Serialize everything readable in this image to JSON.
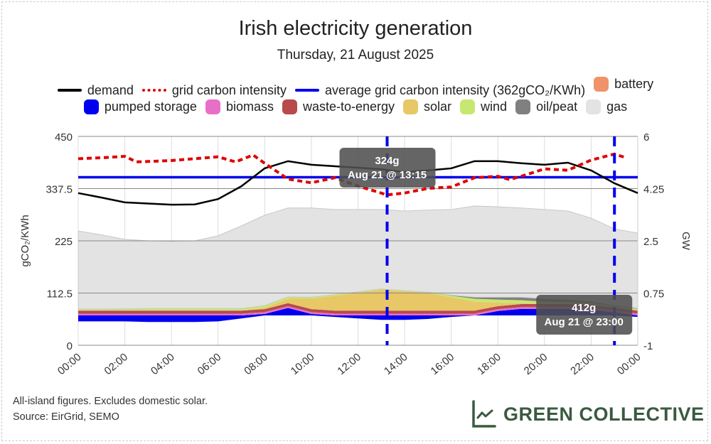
{
  "chart_data": {
    "type": "area",
    "title": "Irish electricity generation",
    "subtitle": "Thursday, 21 August 2025",
    "ylabel_left": "gCO₂/KWh",
    "ylabel_right": "GW",
    "ylim_left": [
      0,
      450
    ],
    "ylim_right": [
      -1,
      6
    ],
    "yticks_left": [
      "0",
      "112.5",
      "225",
      "337.5",
      "450"
    ],
    "yticks_right": [
      "-1",
      "0.75",
      "2.5",
      "4.25",
      "6"
    ],
    "xticks": [
      "00:00",
      "02:00",
      "04:00",
      "06:00",
      "08:00",
      "10:00",
      "12:00",
      "14:00",
      "16:00",
      "18:00",
      "20:00",
      "22:00",
      "00:00"
    ],
    "grid": true,
    "legend": {
      "placement": "top",
      "items": [
        {
          "label": "demand",
          "type": "line",
          "color": "#000000"
        },
        {
          "label": "grid carbon intensity",
          "type": "dash",
          "color": "#e00000"
        },
        {
          "label": "average grid carbon intensity (362gCO₂/KWh)",
          "type": "line",
          "color": "#0000ee"
        },
        {
          "label": "battery",
          "type": "box",
          "color": "#f0936a"
        },
        {
          "label": "pumped storage",
          "type": "box",
          "color": "#0000ee"
        },
        {
          "label": "biomass",
          "type": "box",
          "color": "#e86fc8"
        },
        {
          "label": "waste-to-energy",
          "type": "box",
          "color": "#b84a4a"
        },
        {
          "label": "solar",
          "type": "box",
          "color": "#e8c766"
        },
        {
          "label": "wind",
          "type": "box",
          "color": "#c6e870"
        },
        {
          "label": "oil/peat",
          "type": "box",
          "color": "#808080"
        },
        {
          "label": "gas",
          "type": "box",
          "color": "#e3e3e3"
        }
      ]
    },
    "hours": [
      0,
      1,
      2,
      3,
      4,
      5,
      6,
      7,
      8,
      9,
      10,
      11,
      12,
      13,
      14,
      15,
      16,
      17,
      18,
      19,
      20,
      21,
      22,
      23,
      24
    ],
    "stack_gw": [
      {
        "name": "pumped storage",
        "color": "#0000ee",
        "values": [
          -0.2,
          -0.2,
          -0.2,
          -0.22,
          -0.22,
          -0.22,
          -0.2,
          -0.1,
          0.05,
          0.25,
          0.05,
          -0.05,
          -0.1,
          -0.15,
          -0.15,
          -0.12,
          -0.05,
          0,
          0.15,
          0.22,
          0.22,
          0.22,
          0.2,
          0.1,
          -0.05
        ]
      },
      {
        "name": "biomass",
        "color": "#e86fc8",
        "values": [
          0.06,
          0.06,
          0.06,
          0.06,
          0.06,
          0.06,
          0.06,
          0.06,
          0.06,
          0.06,
          0.06,
          0.06,
          0.06,
          0.06,
          0.06,
          0.06,
          0.06,
          0.06,
          0.06,
          0.06,
          0.06,
          0.06,
          0.06,
          0.06,
          0.06
        ]
      },
      {
        "name": "waste-to-energy",
        "color": "#b84a4a",
        "values": [
          0.1,
          0.1,
          0.1,
          0.1,
          0.1,
          0.1,
          0.1,
          0.1,
          0.1,
          0.1,
          0.1,
          0.1,
          0.1,
          0.1,
          0.1,
          0.1,
          0.1,
          0.1,
          0.1,
          0.1,
          0.1,
          0.1,
          0.1,
          0.1,
          0.1
        ]
      },
      {
        "name": "solar",
        "color": "#e8c766",
        "values": [
          0,
          0,
          0,
          0,
          0,
          0,
          0,
          0,
          0.05,
          0.15,
          0.35,
          0.5,
          0.6,
          0.7,
          0.65,
          0.6,
          0.45,
          0.3,
          0.12,
          0.03,
          0,
          0,
          0,
          0,
          0
        ]
      },
      {
        "name": "wind",
        "color": "#c6e870",
        "values": [
          0.05,
          0.05,
          0.06,
          0.07,
          0.07,
          0.07,
          0.07,
          0.07,
          0.07,
          0.06,
          0.05,
          0.04,
          0.03,
          0.03,
          0.02,
          0.02,
          0.05,
          0.1,
          0.1,
          0.1,
          0.08,
          0.07,
          0.06,
          0.05,
          0.06
        ]
      },
      {
        "name": "oil/peat",
        "color": "#808080",
        "values": [
          0,
          0,
          0,
          0,
          0,
          0,
          0,
          0,
          0,
          0,
          0,
          0,
          0,
          0,
          0,
          0,
          0.02,
          0.05,
          0.08,
          0.1,
          0.1,
          0.08,
          0.05,
          0.03,
          0.02
        ]
      },
      {
        "name": "gas",
        "color": "#e3e3e3",
        "values": [
          2.62,
          2.49,
          2.33,
          2.27,
          2.25,
          2.27,
          2.44,
          2.77,
          3.03,
          2.98,
          2.99,
          2.85,
          2.76,
          2.66,
          2.67,
          2.75,
          2.87,
          3.06,
          3.03,
          2.99,
          2.99,
          2.97,
          2.79,
          2.56,
          2.52
        ]
      },
      {
        "name": "battery",
        "color": "#f0936a",
        "values": [
          0,
          0,
          0,
          0,
          0,
          0,
          0,
          0,
          0,
          0,
          0,
          0,
          0,
          0,
          0,
          0,
          0,
          0,
          0,
          0,
          0,
          0,
          0,
          0,
          0
        ]
      }
    ],
    "demand_gw": [
      4.1,
      3.95,
      3.79,
      3.75,
      3.71,
      3.72,
      3.9,
      4.33,
      4.93,
      5.17,
      5.05,
      5.0,
      4.95,
      4.9,
      4.8,
      4.86,
      4.93,
      5.17,
      5.17,
      5.1,
      5.05,
      5.12,
      4.86,
      4.43,
      4.1
    ],
    "carbon_intensity": {
      "hours": [
        0,
        1,
        2,
        2.5,
        4,
        6,
        6.75,
        7.5,
        8,
        9,
        10,
        11,
        12,
        13.25,
        14,
        15,
        16,
        17,
        18,
        18.5,
        19,
        20,
        21,
        22,
        23,
        23.5
      ],
      "values": [
        402,
        404,
        407,
        395,
        398,
        406,
        395,
        410,
        392,
        358,
        350,
        361,
        343,
        324,
        328,
        338,
        341,
        361,
        364,
        357,
        364,
        380,
        377,
        399,
        412,
        404
      ]
    },
    "average_carbon_intensity": 362,
    "tooltips": [
      {
        "hour": 13.25,
        "value": "324g",
        "time": "Aug 21 @ 13:15"
      },
      {
        "hour": 23.0,
        "value": "412g",
        "time": "Aug 21 @ 23:00"
      }
    ]
  },
  "footer": {
    "line1": "All-island figures. Excludes domestic solar.",
    "line2": "Source: EirGrid, SEMO"
  },
  "brand": {
    "name": "GREEN COLLECTIVE",
    "color": "#3a5a40"
  }
}
